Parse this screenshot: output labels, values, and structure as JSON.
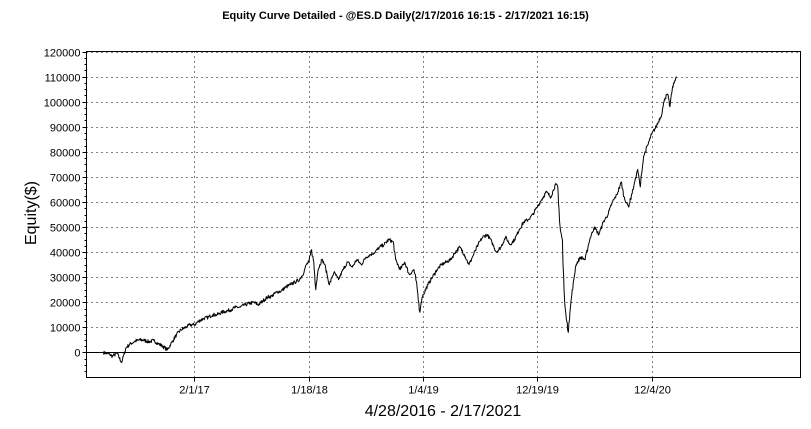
{
  "chart_data": {
    "type": "line",
    "title": "Equity Curve Detailed - @ES.D Daily(2/17/2016 16:15 - 2/17/2021 16:15)",
    "xlabel": "4/28/2016 - 2/17/2021",
    "ylabel": "Equity($)",
    "ylim": [
      -10000,
      120000
    ],
    "xlim": [
      "2016-03-07",
      "2022-03-05"
    ],
    "y_ticks": [
      0,
      10000,
      20000,
      30000,
      40000,
      50000,
      60000,
      70000,
      80000,
      90000,
      100000,
      110000,
      120000
    ],
    "x_ticks": [
      {
        "date": "2017-02-01",
        "label": "2/1/17"
      },
      {
        "date": "2018-01-18",
        "label": "1/18/18"
      },
      {
        "date": "2019-01-04",
        "label": "1/4/19"
      },
      {
        "date": "2019-12-19",
        "label": "12/19/19"
      },
      {
        "date": "2020-12-04",
        "label": "12/4/20"
      }
    ],
    "grid": true,
    "series": [
      {
        "values": [
          [
            "2016-04-28",
            0
          ],
          [
            "2016-05-12",
            -500
          ],
          [
            "2016-05-26",
            -1500
          ],
          [
            "2016-06-09",
            -300
          ],
          [
            "2016-06-23",
            -4000
          ],
          [
            "2016-07-07",
            2000
          ],
          [
            "2016-07-21",
            3500
          ],
          [
            "2016-08-04",
            4500
          ],
          [
            "2016-08-18",
            5000
          ],
          [
            "2016-09-01",
            4800
          ],
          [
            "2016-09-15",
            4200
          ],
          [
            "2016-09-29",
            4800
          ],
          [
            "2016-10-13",
            3500
          ],
          [
            "2016-10-27",
            2500
          ],
          [
            "2016-11-10",
            1000
          ],
          [
            "2016-11-24",
            4000
          ],
          [
            "2016-12-08",
            7000
          ],
          [
            "2016-12-22",
            9000
          ],
          [
            "2017-01-05",
            10000
          ],
          [
            "2017-01-19",
            11000
          ],
          [
            "2017-02-01",
            11000
          ],
          [
            "2017-02-15",
            12500
          ],
          [
            "2017-03-01",
            13500
          ],
          [
            "2017-03-15",
            14000
          ],
          [
            "2017-03-29",
            15000
          ],
          [
            "2017-04-12",
            15000
          ],
          [
            "2017-04-26",
            16000
          ],
          [
            "2017-05-10",
            16500
          ],
          [
            "2017-05-24",
            17000
          ],
          [
            "2017-06-07",
            18000
          ],
          [
            "2017-06-21",
            18000
          ],
          [
            "2017-07-05",
            19000
          ],
          [
            "2017-07-19",
            19500
          ],
          [
            "2017-08-02",
            20000
          ],
          [
            "2017-08-16",
            19000
          ],
          [
            "2017-08-30",
            20500
          ],
          [
            "2017-09-13",
            22000
          ],
          [
            "2017-09-27",
            22500
          ],
          [
            "2017-10-11",
            24000
          ],
          [
            "2017-10-25",
            24500
          ],
          [
            "2017-11-08",
            26000
          ],
          [
            "2017-11-22",
            27000
          ],
          [
            "2017-12-06",
            28000
          ],
          [
            "2017-12-20",
            29000
          ],
          [
            "2018-01-03",
            32000
          ],
          [
            "2018-01-10",
            35000
          ],
          [
            "2018-01-18",
            36000
          ],
          [
            "2018-01-26",
            41000
          ],
          [
            "2018-02-02",
            36000
          ],
          [
            "2018-02-08",
            25000
          ],
          [
            "2018-02-15",
            33000
          ],
          [
            "2018-02-27",
            37000
          ],
          [
            "2018-03-08",
            35000
          ],
          [
            "2018-03-22",
            27000
          ],
          [
            "2018-04-05",
            32000
          ],
          [
            "2018-04-19",
            29000
          ],
          [
            "2018-05-03",
            33000
          ],
          [
            "2018-05-17",
            36000
          ],
          [
            "2018-05-31",
            34000
          ],
          [
            "2018-06-14",
            37000
          ],
          [
            "2018-06-28",
            35000
          ],
          [
            "2018-07-12",
            38000
          ],
          [
            "2018-07-26",
            39000
          ],
          [
            "2018-08-09",
            40000
          ],
          [
            "2018-08-23",
            42000
          ],
          [
            "2018-09-06",
            43000
          ],
          [
            "2018-09-20",
            45000
          ],
          [
            "2018-10-04",
            44000
          ],
          [
            "2018-10-11",
            37000
          ],
          [
            "2018-10-25",
            33000
          ],
          [
            "2018-11-08",
            36000
          ],
          [
            "2018-11-22",
            31000
          ],
          [
            "2018-12-06",
            33000
          ],
          [
            "2018-12-14",
            28000
          ],
          [
            "2018-12-24",
            16000
          ],
          [
            "2018-12-31",
            22000
          ],
          [
            "2019-01-04",
            23000
          ],
          [
            "2019-01-18",
            27000
          ],
          [
            "2019-02-01",
            30000
          ],
          [
            "2019-02-15",
            33000
          ],
          [
            "2019-03-01",
            35000
          ],
          [
            "2019-03-15",
            36000
          ],
          [
            "2019-03-29",
            37000
          ],
          [
            "2019-04-12",
            40000
          ],
          [
            "2019-04-26",
            42000
          ],
          [
            "2019-05-10",
            39000
          ],
          [
            "2019-05-24",
            35000
          ],
          [
            "2019-06-07",
            39000
          ],
          [
            "2019-06-21",
            43000
          ],
          [
            "2019-07-05",
            46000
          ],
          [
            "2019-07-19",
            47000
          ],
          [
            "2019-08-02",
            44000
          ],
          [
            "2019-08-16",
            40000
          ],
          [
            "2019-08-30",
            42000
          ],
          [
            "2019-09-13",
            46000
          ],
          [
            "2019-09-27",
            43000
          ],
          [
            "2019-10-11",
            45000
          ],
          [
            "2019-10-25",
            49000
          ],
          [
            "2019-11-08",
            52000
          ],
          [
            "2019-11-22",
            53000
          ],
          [
            "2019-12-06",
            55000
          ],
          [
            "2019-12-19",
            58000
          ],
          [
            "2020-01-02",
            61000
          ],
          [
            "2020-01-16",
            64000
          ],
          [
            "2020-01-30",
            62000
          ],
          [
            "2020-02-13",
            67000
          ],
          [
            "2020-02-20",
            66000
          ],
          [
            "2020-02-27",
            50000
          ],
          [
            "2020-03-05",
            45000
          ],
          [
            "2020-03-12",
            20000
          ],
          [
            "2020-03-23",
            8000
          ],
          [
            "2020-04-02",
            22000
          ],
          [
            "2020-04-16",
            35000
          ],
          [
            "2020-04-30",
            38000
          ],
          [
            "2020-05-14",
            37000
          ],
          [
            "2020-05-28",
            45000
          ],
          [
            "2020-06-11",
            50000
          ],
          [
            "2020-06-25",
            47000
          ],
          [
            "2020-07-09",
            52000
          ],
          [
            "2020-07-23",
            55000
          ],
          [
            "2020-08-06",
            60000
          ],
          [
            "2020-08-20",
            63000
          ],
          [
            "2020-09-02",
            68000
          ],
          [
            "2020-09-10",
            62000
          ],
          [
            "2020-09-24",
            58000
          ],
          [
            "2020-10-08",
            65000
          ],
          [
            "2020-10-22",
            73000
          ],
          [
            "2020-10-30",
            66000
          ],
          [
            "2020-11-09",
            78000
          ],
          [
            "2020-11-23",
            83000
          ],
          [
            "2020-12-04",
            87000
          ],
          [
            "2020-12-18",
            90000
          ],
          [
            "2021-01-04",
            95000
          ],
          [
            "2021-01-12",
            101000
          ],
          [
            "2021-01-22",
            103000
          ],
          [
            "2021-01-29",
            98000
          ],
          [
            "2021-02-05",
            105000
          ],
          [
            "2021-02-12",
            108000
          ],
          [
            "2021-02-17",
            110000
          ]
        ]
      }
    ]
  }
}
